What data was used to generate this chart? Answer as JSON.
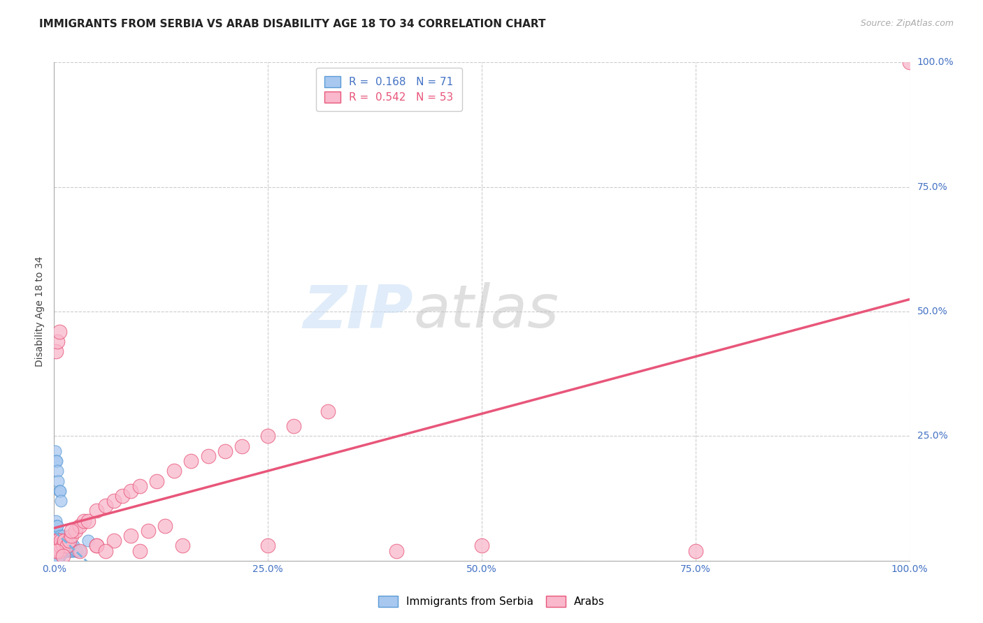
{
  "title": "IMMIGRANTS FROM SERBIA VS ARAB DISABILITY AGE 18 TO 34 CORRELATION CHART",
  "source": "Source: ZipAtlas.com",
  "ylabel": "Disability Age 18 to 34",
  "xlim": [
    0,
    1.0
  ],
  "ylim": [
    0,
    1.0
  ],
  "xticks": [
    0.0,
    0.25,
    0.5,
    0.75,
    1.0
  ],
  "yticks": [
    0.0,
    0.25,
    0.5,
    0.75,
    1.0
  ],
  "xtick_labels": [
    "0.0%",
    "25.0%",
    "50.0%",
    "75.0%",
    "100.0%"
  ],
  "ytick_labels": [
    "0.0%",
    "25.0%",
    "50.0%",
    "75.0%",
    "100.0%"
  ],
  "serbia_R": 0.168,
  "serbia_N": 71,
  "arab_R": 0.542,
  "arab_N": 53,
  "serbia_color": "#a8c8f0",
  "arab_color": "#f9b8cc",
  "serbia_edge_color": "#5b9bd5",
  "arab_edge_color": "#e8567a",
  "serbia_line_color": "#7ab3e0",
  "arab_line_color": "#e8567a",
  "tick_color": "#4472c4",
  "grid_color": "#cccccc",
  "background_color": "#ffffff",
  "serbia_x": [
    0.001,
    0.001,
    0.002,
    0.002,
    0.002,
    0.002,
    0.003,
    0.003,
    0.003,
    0.003,
    0.003,
    0.004,
    0.004,
    0.004,
    0.004,
    0.005,
    0.005,
    0.005,
    0.006,
    0.006,
    0.006,
    0.007,
    0.007,
    0.007,
    0.008,
    0.008,
    0.008,
    0.009,
    0.009,
    0.01,
    0.01,
    0.01,
    0.011,
    0.011,
    0.012,
    0.012,
    0.013,
    0.013,
    0.014,
    0.015,
    0.015,
    0.016,
    0.017,
    0.018,
    0.019,
    0.02,
    0.021,
    0.022,
    0.023,
    0.025,
    0.027,
    0.03,
    0.001,
    0.002,
    0.003,
    0.004,
    0.005,
    0.006,
    0.007,
    0.008,
    0.002,
    0.003,
    0.004,
    0.005,
    0.006,
    0.007,
    0.002,
    0.003,
    0.004,
    0.005,
    0.04
  ],
  "serbia_y": [
    0.03,
    0.05,
    0.02,
    0.04,
    0.06,
    0.08,
    0.02,
    0.03,
    0.04,
    0.06,
    0.07,
    0.02,
    0.03,
    0.05,
    0.07,
    0.02,
    0.03,
    0.04,
    0.02,
    0.03,
    0.04,
    0.02,
    0.03,
    0.05,
    0.02,
    0.03,
    0.04,
    0.02,
    0.04,
    0.02,
    0.03,
    0.05,
    0.02,
    0.04,
    0.02,
    0.03,
    0.02,
    0.04,
    0.03,
    0.02,
    0.03,
    0.02,
    0.03,
    0.02,
    0.03,
    0.02,
    0.03,
    0.02,
    0.03,
    0.02,
    0.02,
    0.02,
    0.22,
    0.2,
    0.2,
    0.18,
    0.16,
    0.14,
    0.14,
    0.12,
    0.01,
    0.01,
    0.01,
    0.01,
    0.01,
    0.01,
    0.005,
    0.005,
    0.005,
    0.005,
    0.04
  ],
  "arab_x": [
    0.001,
    0.002,
    0.003,
    0.004,
    0.005,
    0.006,
    0.007,
    0.008,
    0.01,
    0.012,
    0.015,
    0.018,
    0.02,
    0.025,
    0.03,
    0.035,
    0.04,
    0.05,
    0.06,
    0.07,
    0.08,
    0.09,
    0.1,
    0.12,
    0.14,
    0.16,
    0.18,
    0.2,
    0.22,
    0.25,
    0.28,
    0.32,
    0.05,
    0.07,
    0.09,
    0.11,
    0.13,
    0.002,
    0.004,
    0.006,
    0.02,
    0.05,
    0.1,
    0.003,
    0.01,
    0.03,
    0.06,
    0.15,
    0.25,
    0.4,
    0.5,
    0.75,
    1.0
  ],
  "arab_y": [
    0.03,
    0.04,
    0.02,
    0.03,
    0.04,
    0.02,
    0.03,
    0.04,
    0.03,
    0.04,
    0.03,
    0.04,
    0.05,
    0.06,
    0.07,
    0.08,
    0.08,
    0.1,
    0.11,
    0.12,
    0.13,
    0.14,
    0.15,
    0.16,
    0.18,
    0.2,
    0.21,
    0.22,
    0.23,
    0.25,
    0.27,
    0.3,
    0.03,
    0.04,
    0.05,
    0.06,
    0.07,
    0.42,
    0.44,
    0.46,
    0.06,
    0.03,
    0.02,
    0.02,
    0.01,
    0.02,
    0.02,
    0.03,
    0.03,
    0.02,
    0.03,
    0.02,
    1.0
  ],
  "title_fontsize": 11,
  "axis_label_fontsize": 10,
  "tick_fontsize": 10
}
